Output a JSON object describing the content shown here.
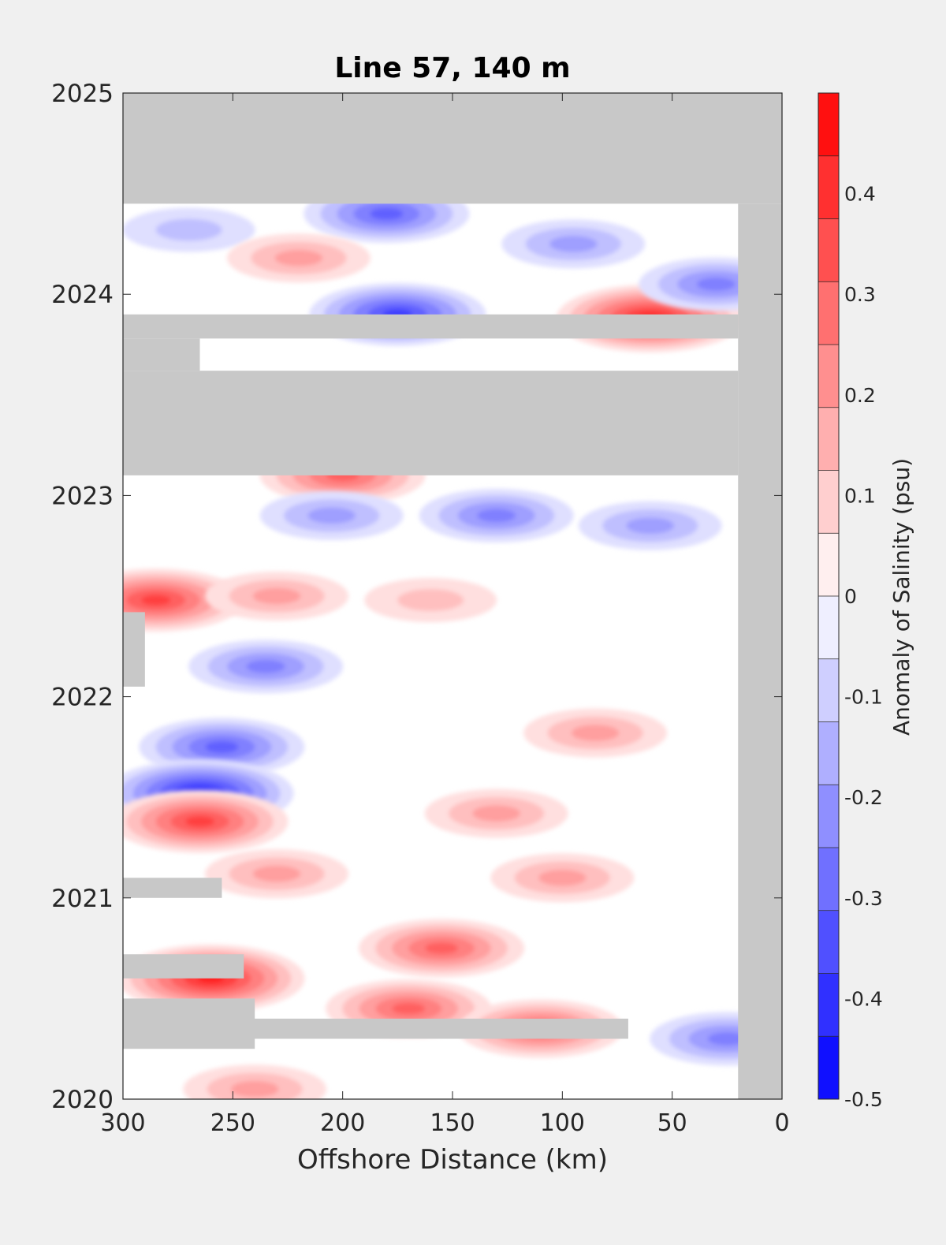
{
  "chart_data": {
    "type": "heatmap",
    "title": "Line 57, 140 m",
    "xlabel": "Offshore Distance (km)",
    "ylabel": "",
    "xlim": [
      300,
      0
    ],
    "ylim": [
      2020,
      2025
    ],
    "x_direction": "reversed",
    "x_ticks": [
      "300",
      "250",
      "200",
      "150",
      "100",
      "50",
      "0"
    ],
    "y_ticks": [
      "2020",
      "2021",
      "2022",
      "2023",
      "2024",
      "2025"
    ],
    "colorbar": {
      "label": "Anomaly of Salinity (psu)",
      "range": [
        -0.5,
        0.5
      ],
      "levels": 16,
      "ticks": [
        "-0.5",
        "-0.4",
        "-0.3",
        "-0.2",
        "-0.1",
        "0",
        "0.1",
        "0.2",
        "0.3",
        "0.4"
      ],
      "colors": {
        "negative": "#0000ff",
        "zero": "#ffffff",
        "positive": "#ff0000"
      }
    },
    "missing_color": "#c8c8c8",
    "no_data_regions": [
      {
        "x_range": [
          300,
          0
        ],
        "y_range": [
          2024.45,
          2025
        ]
      },
      {
        "x_range": [
          20,
          0
        ],
        "y_range": [
          2020,
          2024.45
        ]
      },
      {
        "x_range": [
          300,
          20
        ],
        "y_range": [
          2023.1,
          2023.62
        ]
      },
      {
        "x_range": [
          300,
          20
        ],
        "y_range": [
          2023.78,
          2023.9
        ]
      },
      {
        "x_range": [
          300,
          265
        ],
        "y_range": [
          2023.62,
          2023.78
        ]
      },
      {
        "x_range": [
          300,
          240
        ],
        "y_range": [
          2020.25,
          2020.5
        ]
      },
      {
        "x_range": [
          300,
          70
        ],
        "y_range": [
          2020.3,
          2020.4
        ]
      },
      {
        "x_range": [
          300,
          245
        ],
        "y_range": [
          2020.6,
          2020.72
        ]
      },
      {
        "x_range": [
          300,
          255
        ],
        "y_range": [
          2021,
          2021.1
        ]
      },
      {
        "x_range": [
          300,
          290
        ],
        "y_range": [
          2022.05,
          2022.42
        ]
      }
    ],
    "anomaly_features": [
      {
        "x": 60,
        "y": 2023.88,
        "value": 0.42
      },
      {
        "x": 175,
        "y": 2023.9,
        "value": -0.38
      },
      {
        "x": 180,
        "y": 2024.4,
        "value": -0.3
      },
      {
        "x": 30,
        "y": 2024.05,
        "value": -0.22
      },
      {
        "x": 95,
        "y": 2024.25,
        "value": -0.18
      },
      {
        "x": 270,
        "y": 2024.32,
        "value": -0.15
      },
      {
        "x": 220,
        "y": 2024.18,
        "value": 0.16
      },
      {
        "x": 200,
        "y": 2023.1,
        "value": 0.32
      },
      {
        "x": 130,
        "y": 2022.9,
        "value": -0.25
      },
      {
        "x": 205,
        "y": 2022.9,
        "value": -0.2
      },
      {
        "x": 60,
        "y": 2022.85,
        "value": -0.18
      },
      {
        "x": 285,
        "y": 2022.48,
        "value": 0.38
      },
      {
        "x": 230,
        "y": 2022.5,
        "value": 0.18
      },
      {
        "x": 160,
        "y": 2022.48,
        "value": 0.15
      },
      {
        "x": 235,
        "y": 2022.15,
        "value": -0.25
      },
      {
        "x": 85,
        "y": 2021.82,
        "value": 0.2
      },
      {
        "x": 255,
        "y": 2021.75,
        "value": -0.3
      },
      {
        "x": 265,
        "y": 2021.52,
        "value": -0.42
      },
      {
        "x": 265,
        "y": 2021.38,
        "value": 0.35
      },
      {
        "x": 130,
        "y": 2021.42,
        "value": 0.18
      },
      {
        "x": 230,
        "y": 2021.12,
        "value": 0.2
      },
      {
        "x": 100,
        "y": 2021.1,
        "value": 0.2
      },
      {
        "x": 155,
        "y": 2020.75,
        "value": 0.32
      },
      {
        "x": 260,
        "y": 2020.6,
        "value": 0.42
      },
      {
        "x": 170,
        "y": 2020.45,
        "value": 0.3
      },
      {
        "x": 110,
        "y": 2020.35,
        "value": 0.32
      },
      {
        "x": 25,
        "y": 2020.3,
        "value": -0.25
      },
      {
        "x": 240,
        "y": 2020.05,
        "value": 0.2
      }
    ]
  }
}
